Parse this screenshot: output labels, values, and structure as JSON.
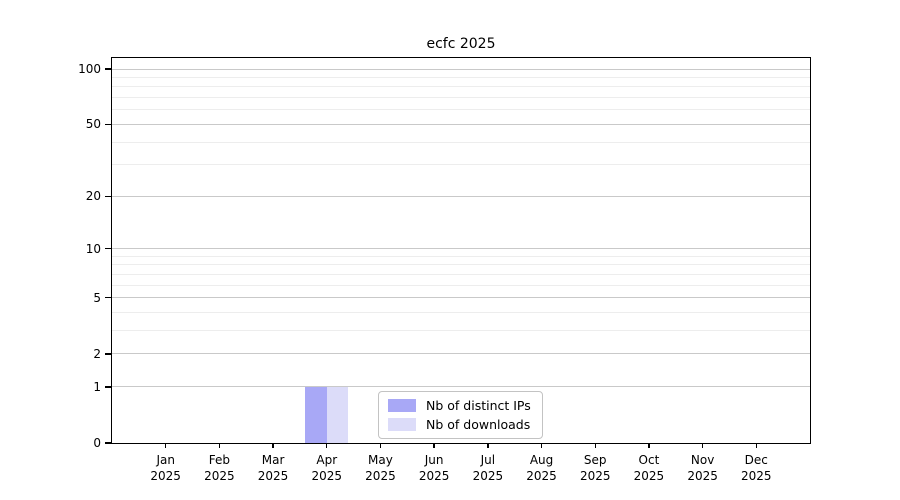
{
  "title": "ecfc 2025",
  "chart_data": {
    "type": "bar",
    "title": "ecfc 2025",
    "categories": [
      "Jan 2025",
      "Feb 2025",
      "Mar 2025",
      "Apr 2025",
      "May 2025",
      "Jun 2025",
      "Jul 2025",
      "Aug 2025",
      "Sep 2025",
      "Oct 2025",
      "Nov 2025",
      "Dec 2025"
    ],
    "x_tick_top_lines": [
      "Jan",
      "Feb",
      "Mar",
      "Apr",
      "May",
      "Jun",
      "Jul",
      "Aug",
      "Sep",
      "Oct",
      "Nov",
      "Dec"
    ],
    "x_tick_bottom_line": "2025",
    "series": [
      {
        "name": "Nb of distinct IPs",
        "color": "#a8a8f6",
        "values": [
          0,
          0,
          0,
          1,
          0,
          0,
          0,
          0,
          0,
          0,
          0,
          0
        ]
      },
      {
        "name": "Nb of downloads",
        "color": "#dcdcf9",
        "values": [
          0,
          0,
          0,
          1,
          0,
          0,
          0,
          0,
          0,
          0,
          0,
          0
        ]
      }
    ],
    "xlabel": "",
    "ylabel": "",
    "y_axis": {
      "scale": "log1p",
      "ticks": [
        0,
        1,
        2,
        5,
        10,
        20,
        50,
        100
      ],
      "minor_ticks": [
        3,
        4,
        6,
        7,
        8,
        9,
        30,
        40,
        60,
        70,
        80,
        90
      ],
      "ylim": [
        0,
        100
      ]
    },
    "grid": true,
    "legend_position": "bottom-center"
  },
  "colors": {
    "bar_distinct_ips": "#a8a8f6",
    "bar_downloads": "#dcdcf9",
    "grid_major": "#c9c9c9",
    "grid_minor": "#ededed",
    "axis": "#000000",
    "background": "#ffffff",
    "legend_border": "#c3c3c3"
  }
}
